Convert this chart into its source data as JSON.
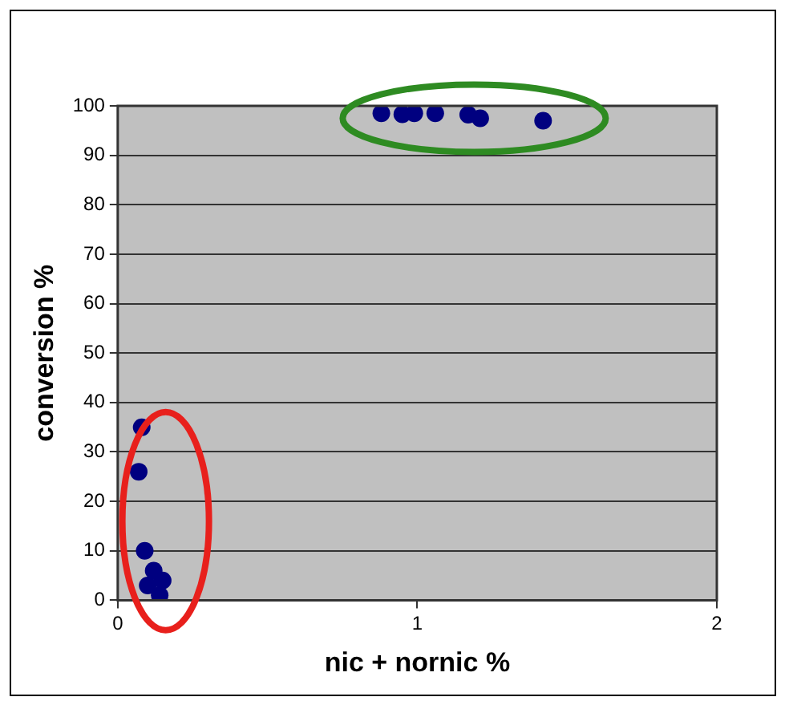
{
  "chart_data": {
    "type": "scatter",
    "xlabel": "nic + nornic %",
    "ylabel": "conversion %",
    "x": [
      0.08,
      0.07,
      0.09,
      0.1,
      0.12,
      0.15,
      0.14,
      0.88,
      0.95,
      0.99,
      1.06,
      1.17,
      1.21,
      1.42
    ],
    "series": [
      {
        "color": "#000080",
        "values": [
          35,
          26,
          10,
          3,
          6,
          4,
          1,
          98.5,
          98.3,
          98.5,
          98.5,
          98.2,
          97.5,
          97
        ]
      }
    ],
    "xlim": [
      0,
      2
    ],
    "xticks": [
      0,
      1,
      2
    ],
    "ylim": [
      0,
      100
    ],
    "yticks": [
      0,
      10,
      20,
      30,
      40,
      50,
      60,
      70,
      80,
      90,
      100
    ],
    "grid": "y",
    "marker": "circle",
    "legend": false
  }
}
